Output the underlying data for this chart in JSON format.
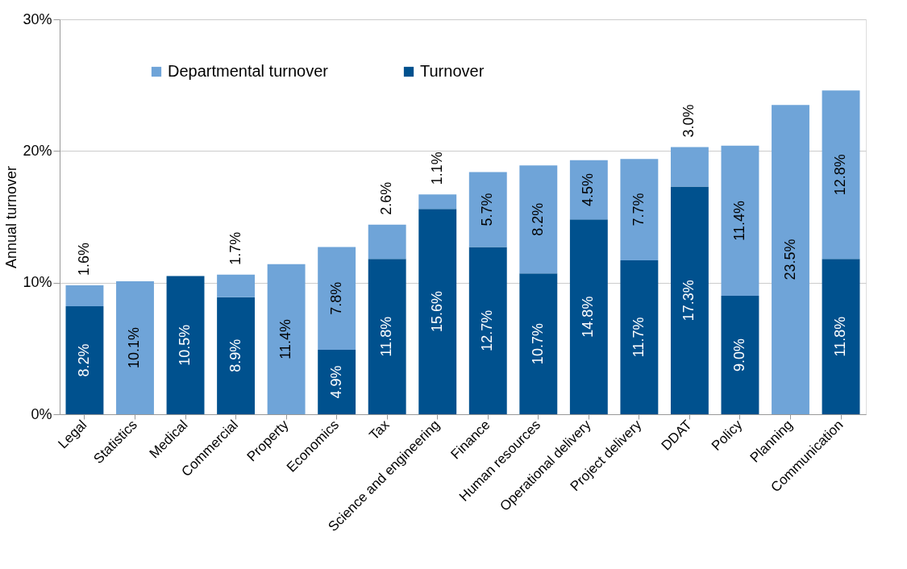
{
  "chart_data": {
    "type": "bar",
    "stacked": true,
    "ylabel": "Annual turnover",
    "categories": [
      "Legal",
      "Statistics",
      "Medical",
      "Commercial",
      "Property",
      "Economics",
      "Tax",
      "Science and engineering",
      "Finance",
      "Human resources",
      "Operational delivery",
      "Project delivery",
      "DDAT",
      "Policy",
      "Planning",
      "Communication"
    ],
    "series": [
      {
        "name": "Turnover",
        "color": "#00518e",
        "values": [
          8.2,
          null,
          10.5,
          8.9,
          null,
          4.9,
          11.8,
          15.6,
          12.7,
          10.7,
          14.8,
          11.7,
          17.3,
          9.0,
          null,
          11.8
        ],
        "value_labels": [
          "8.2%",
          null,
          "10.5%",
          "8.9%",
          null,
          "4.9%",
          "11.8%",
          "15.6%",
          "12.7%",
          "10.7%",
          "14.8%",
          "11.7%",
          "17.3%",
          "9.0%",
          null,
          "11.8%"
        ]
      },
      {
        "name": "Departmental turnover",
        "color": "#6fa4d8",
        "values": [
          1.6,
          10.1,
          null,
          1.7,
          11.4,
          7.8,
          2.6,
          1.1,
          5.7,
          8.2,
          4.5,
          7.7,
          3.0,
          11.4,
          23.5,
          12.8
        ],
        "value_labels": [
          "1.6%",
          "10.1%",
          null,
          "1.7%",
          "11.4%",
          "7.8%",
          "2.6%",
          "1.1%",
          "5.7%",
          "8.2%",
          "4.5%",
          "7.7%",
          "3.0%",
          "11.4%",
          "23.5%",
          "12.8%"
        ]
      }
    ],
    "ylim": [
      0,
      30
    ],
    "yticks": [
      {
        "value": 0,
        "label": "0%"
      },
      {
        "value": 10,
        "label": "10%"
      },
      {
        "value": 20,
        "label": "20%"
      },
      {
        "value": 30,
        "label": "30%"
      }
    ],
    "grid": "y",
    "legend": "top left"
  }
}
